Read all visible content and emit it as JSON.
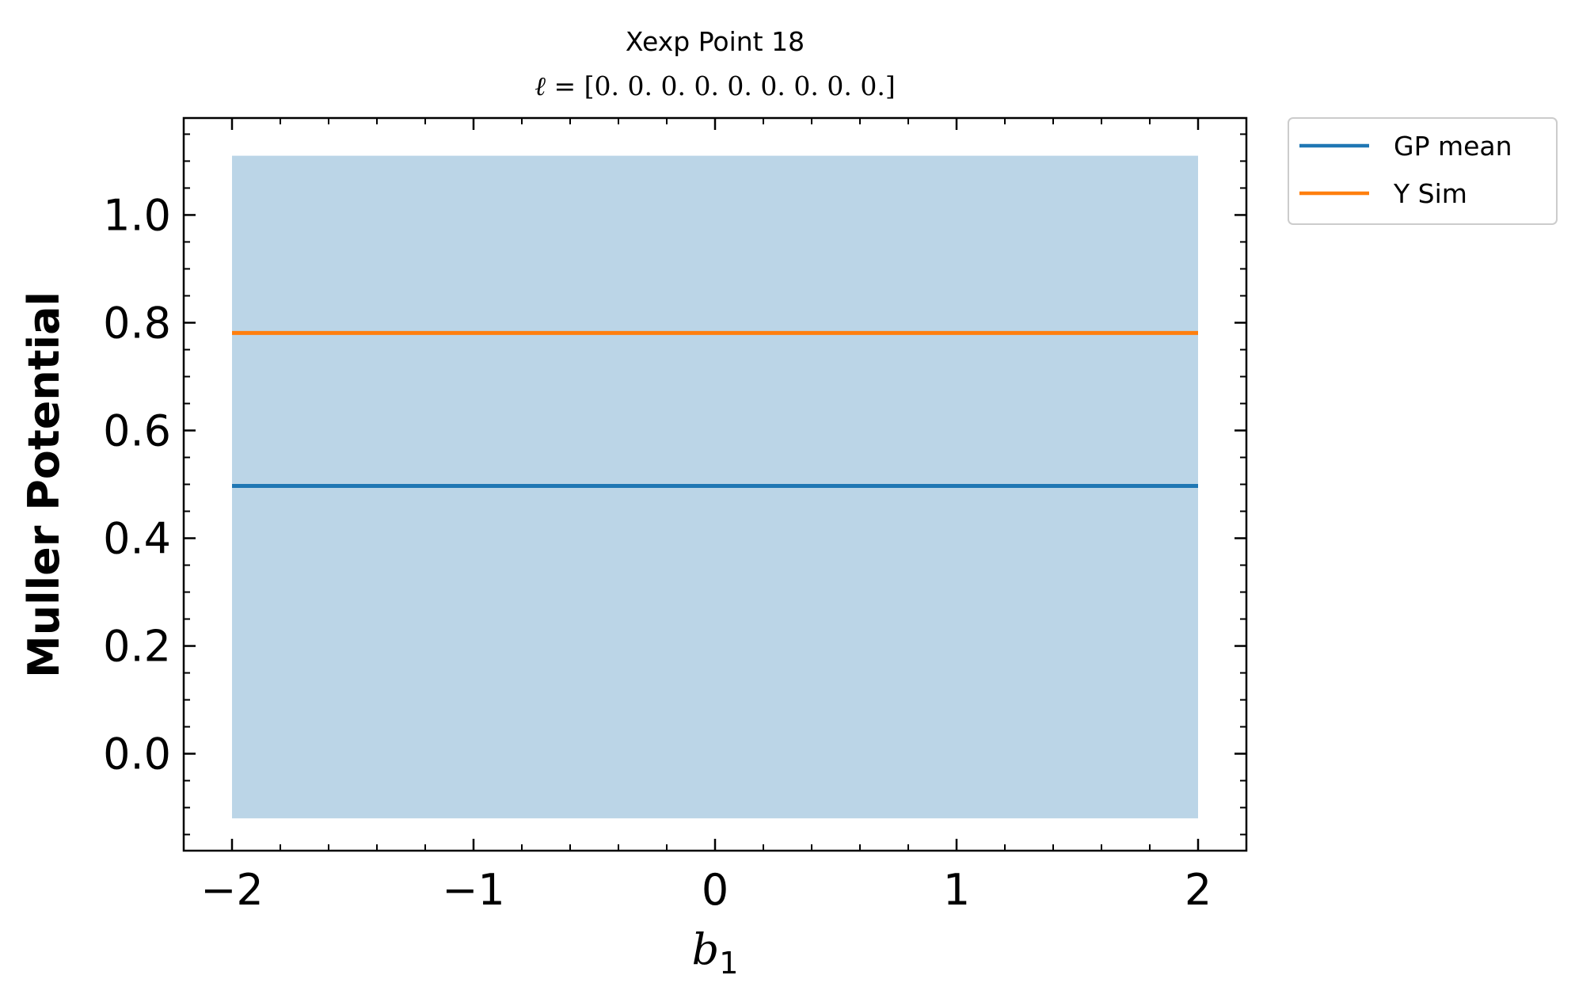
{
  "chart_data": {
    "type": "line",
    "title": "Xexp Point 18",
    "subtitle_symbol": "ℓ",
    "subtitle_rest": " = [0. 0. 0. 0. 0. 0. 0. 0. 0.]",
    "xlabel_main": "b",
    "xlabel_sub": "1",
    "ylabel": "Muller Potential",
    "xlim": [
      -2.2,
      2.2
    ],
    "ylim": [
      -0.18,
      1.18
    ],
    "x_ticks": [
      -2,
      -1,
      0,
      1,
      2
    ],
    "x_tick_labels": [
      "−2",
      "−1",
      "0",
      "1",
      "2"
    ],
    "y_ticks": [
      0.0,
      0.2,
      0.4,
      0.6,
      0.8,
      1.0
    ],
    "y_tick_labels": [
      "0.0",
      "0.2",
      "0.4",
      "0.6",
      "0.8",
      "1.0"
    ],
    "x_minor_step": 0.2,
    "y_minor_step": 0.05,
    "band": {
      "x": [
        -2,
        2
      ],
      "lower": -0.12,
      "upper": 1.11,
      "color": "#bbd5e7"
    },
    "series": [
      {
        "name": "GP mean",
        "x": [
          -2,
          2
        ],
        "y": [
          0.497,
          0.497
        ],
        "color": "#1f77b4"
      },
      {
        "name": "Y Sim",
        "x": [
          -2,
          2
        ],
        "y": [
          0.781,
          0.781
        ],
        "color": "#ff7f0e"
      }
    ],
    "legend_position": "outside-top-right"
  }
}
